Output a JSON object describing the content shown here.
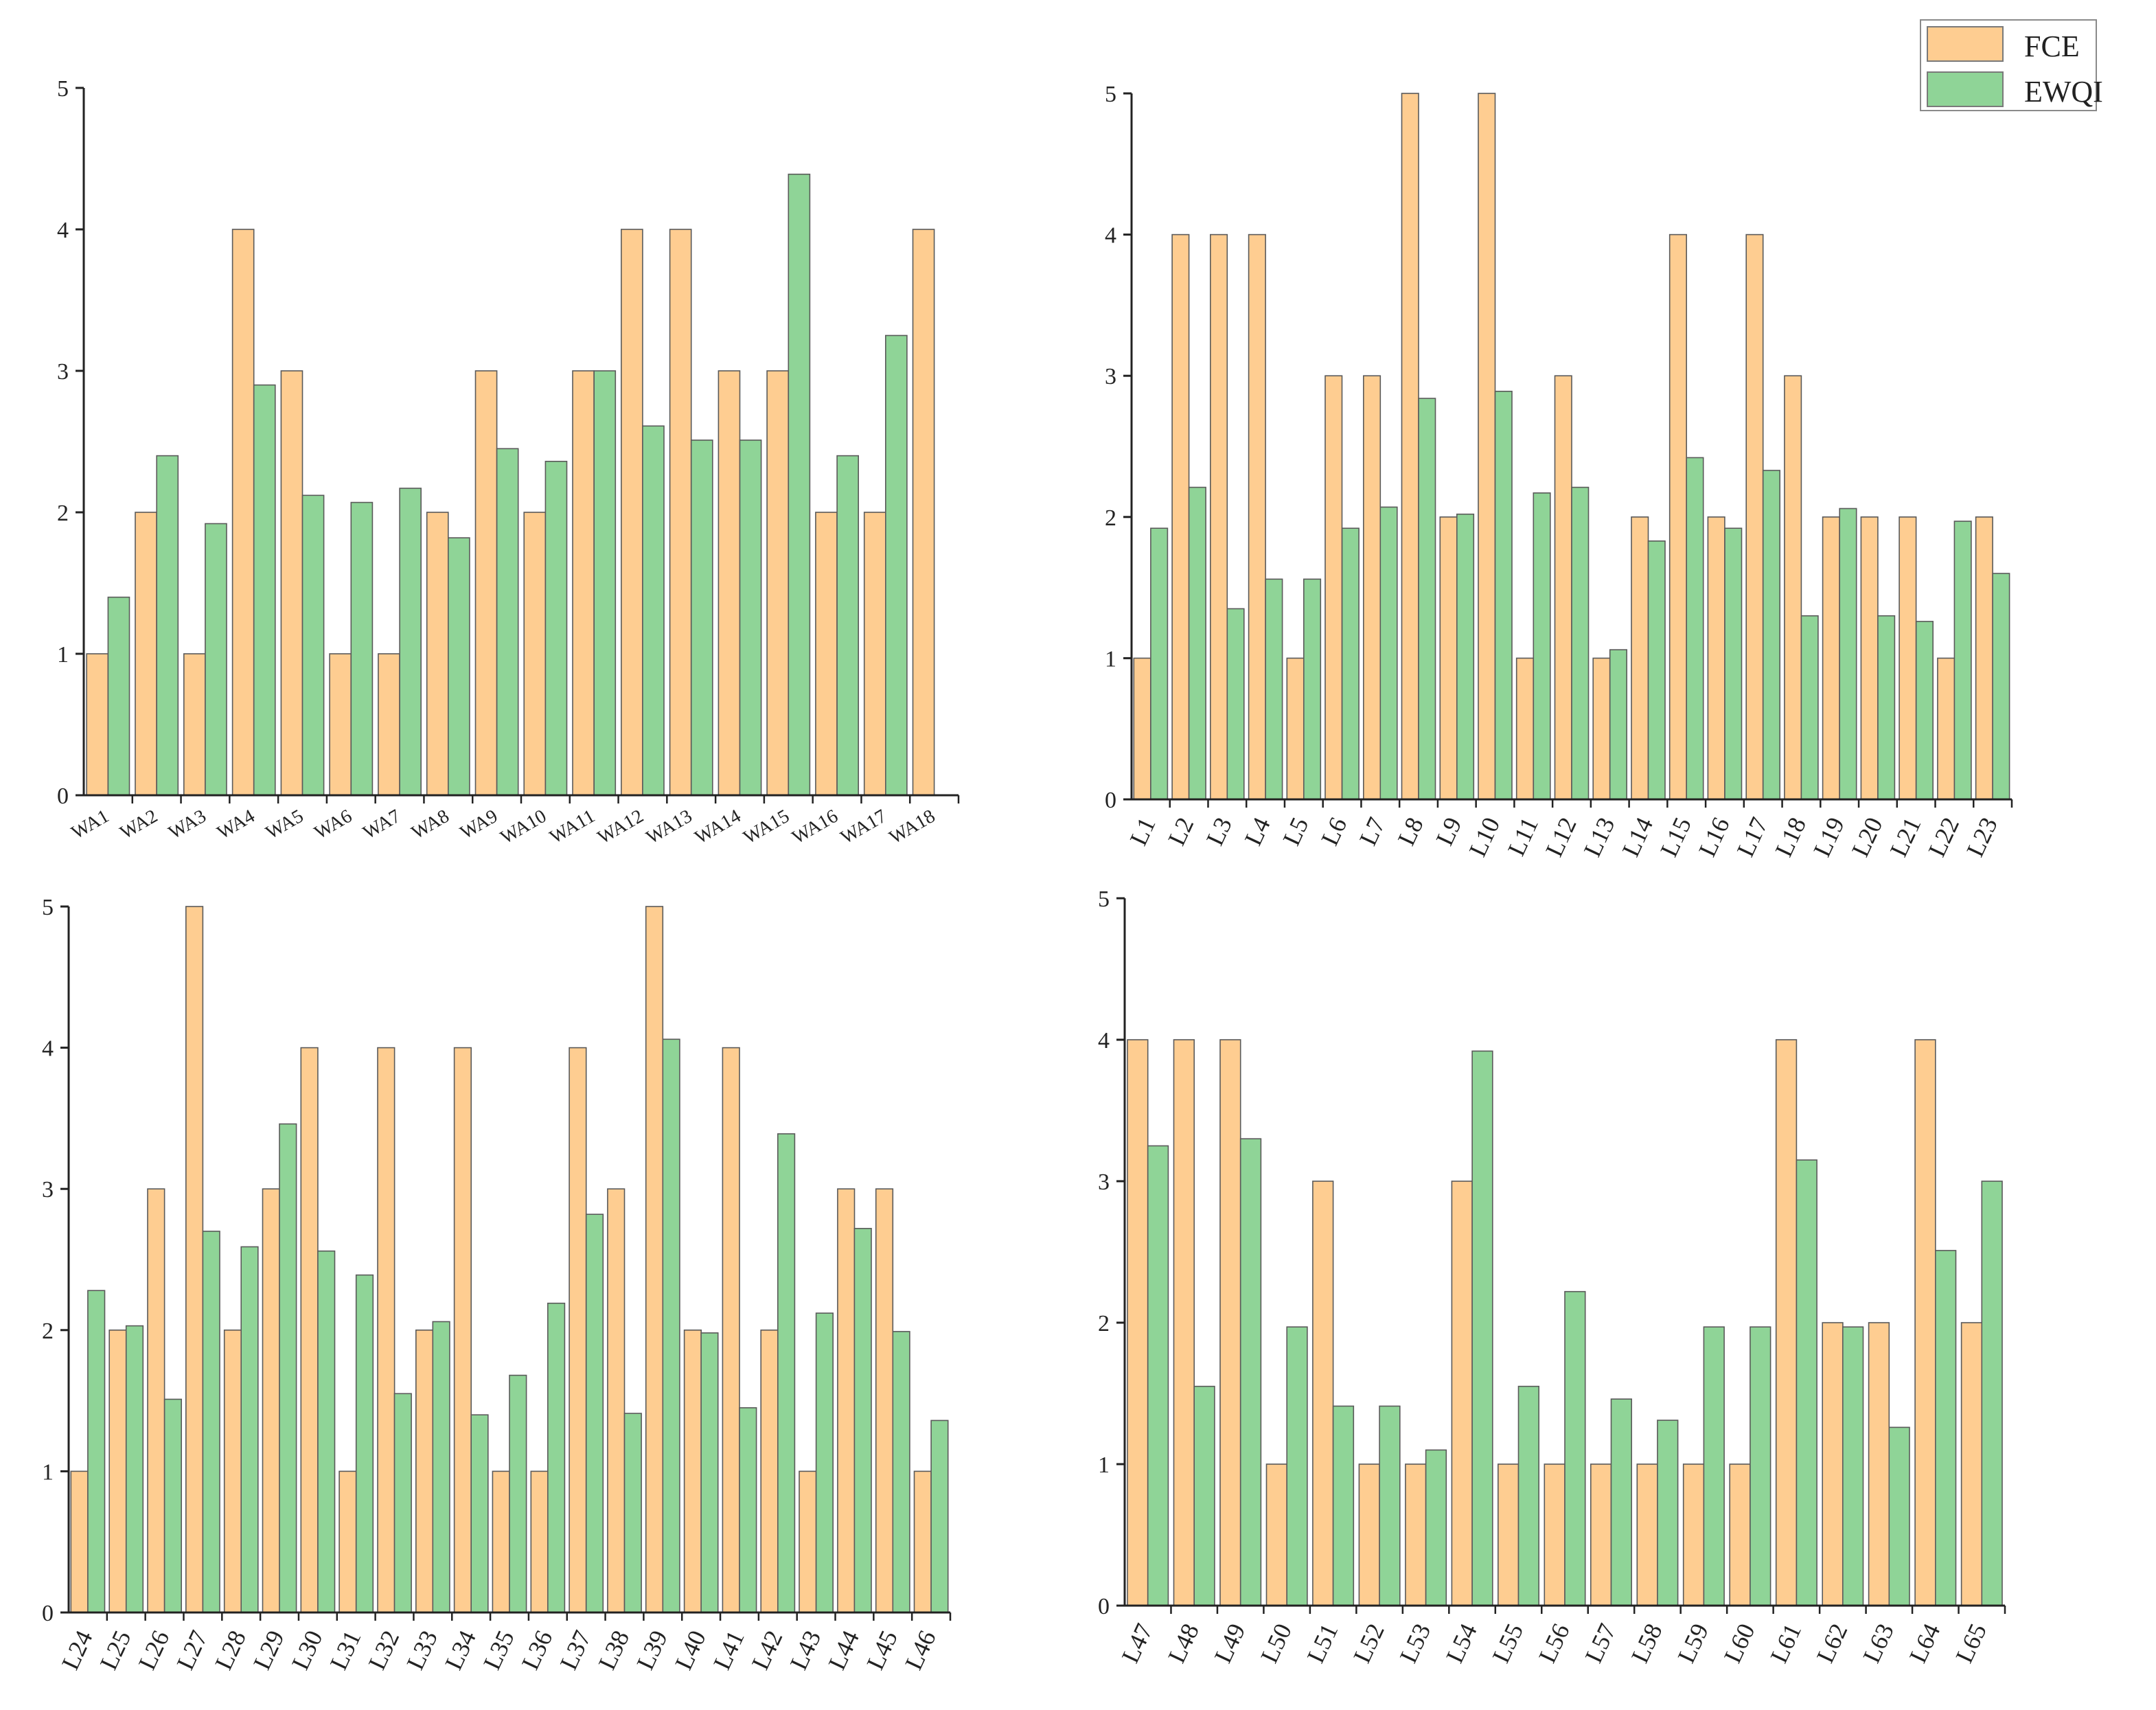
{
  "colors": {
    "fce": "#FECD91",
    "ewqi": "#8FD497",
    "axis": "#222222",
    "bar_edge": "#5a5a5a"
  },
  "legend": {
    "items": [
      {
        "label": "FCE",
        "color": "#FECD91"
      },
      {
        "label": "EWQI",
        "color": "#8FD497"
      }
    ]
  },
  "chart_data": [
    {
      "type": "bar",
      "ylim": [
        0,
        5
      ],
      "yticks": [
        "0",
        "1",
        "2",
        "3",
        "4",
        "5"
      ],
      "categories": [
        "WA1",
        "WA2",
        "WA3",
        "WA4",
        "WA5",
        "WA6",
        "WA7",
        "WA8",
        "WA9",
        "WA10",
        "WA11",
        "WA12",
        "WA13",
        "WA14",
        "WA15",
        "WA16",
        "WA17",
        "WA18"
      ],
      "series": [
        {
          "name": "FCE",
          "values": [
            1,
            2,
            1,
            4,
            3,
            1,
            1,
            2,
            3,
            2,
            3,
            4,
            4,
            3,
            3,
            2,
            2,
            4
          ]
        },
        {
          "name": "EWQI",
          "values": [
            1.4,
            2.4,
            1.92,
            2.9,
            2.12,
            2.07,
            2.17,
            1.82,
            2.45,
            2.36,
            3.0,
            2.61,
            2.51,
            2.51,
            4.39,
            2.4,
            3.25,
            null
          ]
        }
      ]
    },
    {
      "type": "bar",
      "ylim": [
        0,
        5
      ],
      "yticks": [
        "0",
        "1",
        "2",
        "3",
        "4",
        "5"
      ],
      "categories": [
        "L1",
        "L2",
        "L3",
        "L4",
        "L5",
        "L6",
        "L7",
        "L8",
        "L9",
        "L10",
        "L11",
        "L12",
        "L13",
        "L14",
        "L15",
        "L16",
        "L17",
        "L18",
        "L19",
        "L20",
        "L21",
        "L22",
        "L23"
      ],
      "series": [
        {
          "name": "FCE",
          "values": [
            1,
            4,
            4,
            4,
            1,
            3,
            3,
            5,
            2,
            5,
            1,
            3,
            1,
            2,
            4,
            2,
            4,
            3,
            2,
            2,
            2,
            1,
            2
          ]
        },
        {
          "name": "EWQI",
          "values": [
            1.92,
            2.21,
            1.35,
            1.56,
            1.56,
            1.92,
            2.07,
            2.84,
            2.02,
            2.89,
            2.17,
            2.21,
            1.06,
            1.83,
            2.42,
            1.92,
            2.33,
            1.3,
            2.06,
            1.3,
            1.26,
            1.97,
            1.6
          ]
        }
      ]
    },
    {
      "type": "bar",
      "ylim": [
        0,
        5
      ],
      "yticks": [
        "0",
        "1",
        "2",
        "3",
        "4",
        "5"
      ],
      "categories": [
        "L24",
        "L25",
        "L26",
        "L27",
        "L28",
        "L29",
        "L30",
        "L31",
        "L32",
        "L33",
        "L34",
        "L35",
        "L36",
        "L37",
        "L38",
        "L39",
        "L40",
        "L41",
        "L42",
        "L43",
        "L44",
        "L45",
        "L46"
      ],
      "series": [
        {
          "name": "FCE",
          "values": [
            1,
            2,
            3,
            5,
            2,
            3,
            4,
            1,
            4,
            2,
            4,
            1,
            1,
            4,
            3,
            5,
            2,
            4,
            2,
            1,
            3,
            3,
            1
          ]
        },
        {
          "name": "EWQI",
          "values": [
            2.28,
            2.03,
            1.51,
            2.7,
            2.59,
            3.46,
            2.56,
            2.39,
            1.55,
            2.06,
            1.4,
            1.68,
            2.19,
            2.82,
            1.41,
            4.06,
            1.98,
            1.45,
            3.39,
            2.12,
            2.72,
            1.99,
            1.36
          ]
        }
      ]
    },
    {
      "type": "bar",
      "ylim": [
        0,
        5
      ],
      "yticks": [
        "0",
        "1",
        "2",
        "3",
        "4",
        "5"
      ],
      "categories": [
        "L47",
        "L48",
        "L49",
        "L50",
        "L51",
        "L52",
        "L53",
        "L54",
        "L55",
        "L56",
        "L57",
        "L58",
        "L59",
        "L60",
        "L61",
        "L62",
        "L63",
        "L64",
        "L65"
      ],
      "series": [
        {
          "name": "FCE",
          "values": [
            4,
            4,
            4,
            1,
            3,
            1,
            1,
            3,
            1,
            1,
            1,
            1,
            1,
            1,
            4,
            2,
            2,
            4,
            2
          ]
        },
        {
          "name": "EWQI",
          "values": [
            3.25,
            1.55,
            3.3,
            1.97,
            1.41,
            1.41,
            1.1,
            3.92,
            1.55,
            2.22,
            1.46,
            1.31,
            1.97,
            1.97,
            3.15,
            1.97,
            1.26,
            2.51,
            3.0
          ]
        }
      ]
    }
  ]
}
